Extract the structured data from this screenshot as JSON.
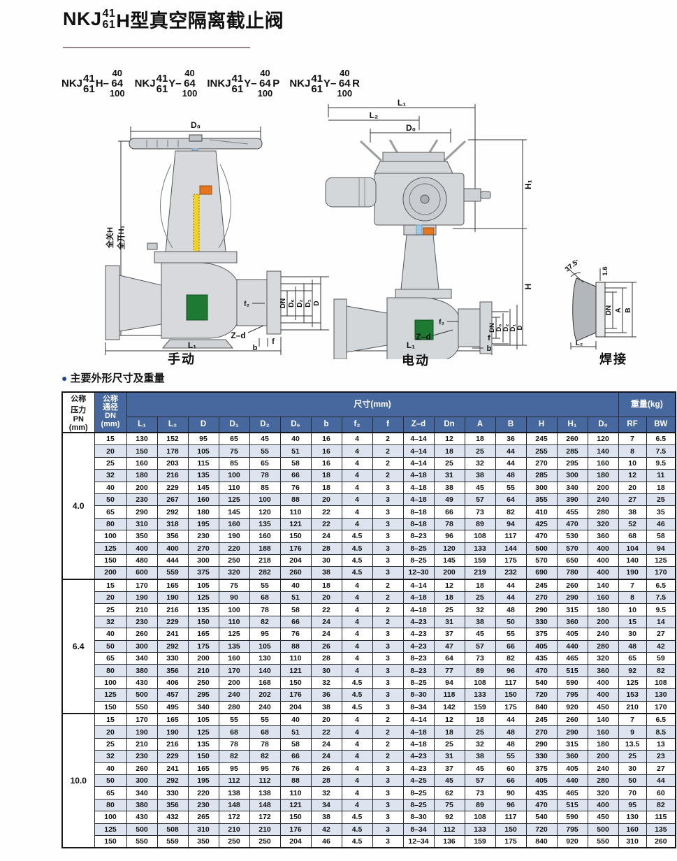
{
  "page_title": {
    "prefix": "NKJ",
    "frac_top": "41",
    "frac_bottom": "61",
    "suffix": "H型真空隔离截止阀"
  },
  "models": [
    {
      "prefix": "NKJ",
      "frac_top": "41",
      "frac_bottom": "61",
      "mid": "H–",
      "stack_top": "40",
      "stack_mid": "64",
      "stack_bottom": "100",
      "suffix": ""
    },
    {
      "prefix": "NKJ",
      "frac_top": "41",
      "frac_bottom": "61",
      "mid": "Y–",
      "stack_top": "40",
      "stack_mid": "64",
      "stack_bottom": "100",
      "suffix": ""
    },
    {
      "prefix": "INKJ",
      "frac_top": "41",
      "frac_bottom": "61",
      "mid": "Y–",
      "stack_top": "40",
      "stack_mid": "64",
      "stack_bottom": "100",
      "suffix": "P"
    },
    {
      "prefix": "NKJ",
      "frac_top": "41",
      "frac_bottom": "61",
      "mid": "Y–",
      "stack_top": "40",
      "stack_mid": "64",
      "stack_bottom": "100",
      "suffix": "R"
    }
  ],
  "drawings": {
    "manual": {
      "caption": "手动",
      "labels": {
        "d0": "D₀",
        "closed_h": "全关H",
        "open_h1": "全开H₁",
        "dn": "DN",
        "d6": "D₆",
        "d2": "D₂",
        "d1": "D₁",
        "d": "D",
        "f2": "f₂",
        "zd": "Z–d",
        "b": "b",
        "f": "f",
        "l1": "L₁"
      }
    },
    "electric": {
      "caption": "电动",
      "labels": {
        "l1_top": "L₁",
        "l2": "L₂",
        "d0": "D₀",
        "h1": "H₁",
        "h": "H",
        "dn": "DN",
        "d6": "D₆",
        "d2": "D₂",
        "d1": "D₁",
        "d": "D",
        "f2": "f₂",
        "zd": "Z–d",
        "f": "f",
        "b": "b",
        "l1_bottom": "L₁"
      }
    },
    "weld": {
      "caption": "焊接",
      "labels": {
        "angle": "37.5°",
        "thickness": "1.6",
        "dn": "DN",
        "a": "A",
        "b": "B",
        "l2": "L₂"
      }
    }
  },
  "section": {
    "bullet": "●",
    "title": "主要外形尺寸及重量"
  },
  "table": {
    "header": {
      "pn": "公称\n压力\nPN\n(mm)",
      "dn": "公称\n通径\nDN\n(mm)",
      "size": "尺寸(mm)",
      "weight": "重量(kg)",
      "cols": [
        "L₁",
        "L₂",
        "D",
        "D₁",
        "D₂",
        "D₆",
        "b",
        "f₂",
        "f",
        "Z–d",
        "Dn",
        "A",
        "B",
        "H",
        "H₁",
        "D₀",
        "RF",
        "BW"
      ]
    },
    "groups": [
      {
        "pn": "4.0",
        "rows": [
          [
            15,
            130,
            152,
            95,
            65,
            45,
            40,
            16,
            4,
            2,
            "4–14",
            12,
            18,
            36,
            245,
            260,
            120,
            7,
            6.5
          ],
          [
            20,
            150,
            178,
            105,
            75,
            55,
            51,
            16,
            4,
            2,
            "4–14",
            18,
            25,
            44,
            255,
            285,
            140,
            8,
            7.5
          ],
          [
            25,
            160,
            203,
            115,
            85,
            65,
            58,
            16,
            4,
            2,
            "4–14",
            25,
            32,
            44,
            270,
            295,
            160,
            10,
            9.5
          ],
          [
            32,
            180,
            216,
            135,
            100,
            78,
            66,
            18,
            4,
            2,
            "4–18",
            31,
            38,
            48,
            285,
            300,
            180,
            12,
            11
          ],
          [
            40,
            200,
            229,
            145,
            110,
            85,
            76,
            18,
            4,
            3,
            "4–18",
            38,
            45,
            55,
            300,
            340,
            200,
            20,
            18
          ],
          [
            50,
            230,
            267,
            160,
            125,
            100,
            88,
            20,
            4,
            3,
            "4–18",
            49,
            57,
            64,
            355,
            390,
            240,
            27,
            25
          ],
          [
            65,
            290,
            292,
            180,
            145,
            120,
            110,
            22,
            4,
            3,
            "8–18",
            66,
            73,
            82,
            410,
            455,
            280,
            38,
            35
          ],
          [
            80,
            310,
            318,
            195,
            160,
            135,
            121,
            22,
            4,
            3,
            "8–18",
            78,
            89,
            94,
            425,
            470,
            320,
            52,
            46
          ],
          [
            100,
            350,
            356,
            230,
            190,
            160,
            150,
            24,
            4.5,
            3,
            "8–23",
            96,
            108,
            117,
            470,
            530,
            360,
            68,
            58
          ],
          [
            125,
            400,
            400,
            270,
            220,
            188,
            176,
            28,
            4.5,
            3,
            "8–25",
            120,
            133,
            144,
            500,
            570,
            400,
            104,
            94
          ],
          [
            150,
            480,
            444,
            300,
            250,
            218,
            204,
            30,
            4.5,
            3,
            "8–25",
            145,
            159,
            175,
            570,
            650,
            400,
            140,
            125
          ],
          [
            200,
            600,
            559,
            375,
            320,
            282,
            260,
            38,
            4.5,
            3,
            "12–30",
            200,
            219,
            232,
            690,
            780,
            400,
            190,
            170
          ]
        ]
      },
      {
        "pn": "6.4",
        "rows": [
          [
            15,
            170,
            165,
            105,
            75,
            55,
            40,
            18,
            4,
            2,
            "4–14",
            12,
            18,
            44,
            245,
            260,
            140,
            7,
            6.5
          ],
          [
            20,
            190,
            190,
            125,
            90,
            68,
            51,
            20,
            4,
            2,
            "4–18",
            18,
            25,
            44,
            270,
            290,
            160,
            8,
            7.5
          ],
          [
            25,
            210,
            216,
            135,
            100,
            78,
            58,
            22,
            4,
            2,
            "4–18",
            25,
            32,
            48,
            290,
            315,
            180,
            10,
            9.5
          ],
          [
            32,
            230,
            229,
            150,
            110,
            82,
            66,
            24,
            4,
            2,
            "4–23",
            31,
            38,
            50,
            330,
            360,
            200,
            15,
            14
          ],
          [
            40,
            260,
            241,
            165,
            125,
            95,
            76,
            24,
            4,
            3,
            "4–23",
            37,
            45,
            55,
            375,
            405,
            240,
            30,
            27
          ],
          [
            50,
            300,
            292,
            175,
            135,
            105,
            88,
            26,
            4,
            3,
            "4–23",
            47,
            57,
            66,
            405,
            440,
            280,
            48,
            42
          ],
          [
            65,
            340,
            330,
            200,
            160,
            130,
            110,
            28,
            4,
            3,
            "8–23",
            64,
            73,
            82,
            435,
            465,
            320,
            65,
            59
          ],
          [
            80,
            380,
            356,
            210,
            170,
            140,
            121,
            30,
            4,
            3,
            "8–23",
            77,
            89,
            96,
            470,
            515,
            360,
            92,
            82
          ],
          [
            100,
            430,
            406,
            250,
            200,
            168,
            150,
            32,
            4.5,
            3,
            "8–25",
            94,
            108,
            117,
            540,
            590,
            400,
            125,
            108
          ],
          [
            125,
            500,
            457,
            295,
            240,
            202,
            176,
            36,
            4.5,
            3,
            "8–30",
            118,
            133,
            150,
            720,
            795,
            400,
            153,
            130
          ],
          [
            150,
            550,
            495,
            340,
            280,
            240,
            204,
            38,
            4.5,
            3,
            "8–34",
            142,
            159,
            175,
            840,
            920,
            450,
            210,
            170
          ]
        ]
      },
      {
        "pn": "10.0",
        "rows": [
          [
            15,
            170,
            165,
            105,
            55,
            55,
            40,
            20,
            4,
            2,
            "4–14",
            12,
            18,
            44,
            245,
            260,
            140,
            7,
            6.5
          ],
          [
            20,
            190,
            190,
            125,
            68,
            68,
            51,
            22,
            4,
            2,
            "4–18",
            18,
            25,
            48,
            270,
            290,
            160,
            9,
            8.5
          ],
          [
            25,
            210,
            216,
            135,
            78,
            78,
            58,
            24,
            4,
            2,
            "4–18",
            25,
            32,
            48,
            290,
            315,
            180,
            13.5,
            13
          ],
          [
            32,
            230,
            229,
            150,
            82,
            82,
            66,
            24,
            4,
            2,
            "4–23",
            31,
            38,
            55,
            330,
            360,
            200,
            25,
            23
          ],
          [
            40,
            260,
            241,
            165,
            95,
            95,
            76,
            26,
            4,
            3,
            "4–23",
            37,
            45,
            60,
            375,
            405,
            240,
            30,
            27
          ],
          [
            50,
            300,
            292,
            195,
            112,
            112,
            88,
            28,
            4,
            3,
            "4–25",
            45,
            57,
            66,
            405,
            440,
            280,
            50,
            44
          ],
          [
            65,
            340,
            330,
            220,
            138,
            138,
            110,
            32,
            4,
            3,
            "8–25",
            62,
            73,
            90,
            435,
            465,
            320,
            70,
            60
          ],
          [
            80,
            380,
            356,
            230,
            148,
            148,
            121,
            34,
            4,
            3,
            "8–25",
            75,
            89,
            96,
            470,
            515,
            400,
            95,
            82
          ],
          [
            100,
            430,
            432,
            265,
            172,
            172,
            150,
            38,
            4.5,
            3,
            "8–30",
            92,
            108,
            117,
            540,
            590,
            450,
            130,
            115
          ],
          [
            125,
            500,
            508,
            310,
            210,
            210,
            176,
            42,
            4.5,
            3,
            "8–34",
            112,
            133,
            150,
            720,
            795,
            500,
            160,
            135
          ],
          [
            150,
            550,
            559,
            350,
            250,
            250,
            204,
            46,
            4.5,
            3,
            "12–34",
            136,
            159,
            175,
            840,
            920,
            550,
            310,
            260
          ]
        ]
      }
    ]
  },
  "colors": {
    "header_blue": "#46689f",
    "row_stripe": "#dde3ef",
    "bullet_navy": "#24488c",
    "divider": "#96868c",
    "seat_green": "#1e7a33",
    "stem_blue": "#9ec9e8",
    "accent_orange": "#e4761f",
    "accent_yellow": "#f2d21f"
  }
}
